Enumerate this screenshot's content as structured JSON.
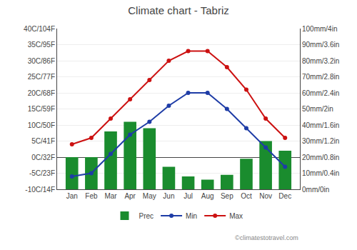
{
  "chart_data": {
    "type": "bar",
    "title": "Climate chart - Tabriz",
    "categories": [
      "Jan",
      "Feb",
      "Mar",
      "Apr",
      "May",
      "Jun",
      "Jul",
      "Aug",
      "Sep",
      "Oct",
      "Nov",
      "Dec"
    ],
    "series": [
      {
        "name": "Prec",
        "type": "bar",
        "axis": "y2",
        "color": "#1a8c2e",
        "values": [
          20,
          20,
          36,
          42,
          38,
          14,
          8,
          6,
          9,
          19,
          30,
          24
        ]
      },
      {
        "name": "Min",
        "type": "line",
        "marker": "circle",
        "color": "#1e3ca6",
        "values": [
          -6,
          -5,
          1,
          7,
          11,
          16,
          20,
          20,
          15,
          9,
          3,
          -3
        ]
      },
      {
        "name": "Max",
        "type": "line",
        "marker": "circle",
        "color": "#cc1111",
        "values": [
          4,
          6,
          12,
          18,
          24,
          30,
          33,
          33,
          28,
          21,
          12,
          6
        ]
      }
    ],
    "ylim": [
      -10,
      40
    ],
    "yticks": [
      {
        "value": -10,
        "label": "-10C/14F"
      },
      {
        "value": -5,
        "label": "-5C/23F"
      },
      {
        "value": 0,
        "label": "0C/32F"
      },
      {
        "value": 5,
        "label": "5C/41F"
      },
      {
        "value": 10,
        "label": "10C/50F"
      },
      {
        "value": 15,
        "label": "15C/59F"
      },
      {
        "value": 20,
        "label": "20C/68F"
      },
      {
        "value": 25,
        "label": "25C/77F"
      },
      {
        "value": 30,
        "label": "30C/86F"
      },
      {
        "value": 35,
        "label": "35C/95F"
      },
      {
        "value": 40,
        "label": "40C/104F"
      }
    ],
    "y2lim": [
      0,
      100
    ],
    "y2ticks": [
      {
        "value": 0,
        "label": "0mm/0in"
      },
      {
        "value": 10,
        "label": "10mm/0.4in"
      },
      {
        "value": 20,
        "label": "20mm/0.8in"
      },
      {
        "value": 30,
        "label": "30mm/1.2in"
      },
      {
        "value": 40,
        "label": "40mm/1.6in"
      },
      {
        "value": 50,
        "label": "50mm/2in"
      },
      {
        "value": 60,
        "label": "60mm/2.4in"
      },
      {
        "value": 70,
        "label": "70mm/2.8in"
      },
      {
        "value": 80,
        "label": "80mm/3.2in"
      },
      {
        "value": 90,
        "label": "90mm/3.6in"
      },
      {
        "value": 100,
        "label": "100mm/4in"
      }
    ],
    "grid": true,
    "legend": "bottom",
    "annotations": [
      {
        "text": "©climatestotravel.com"
      }
    ]
  }
}
